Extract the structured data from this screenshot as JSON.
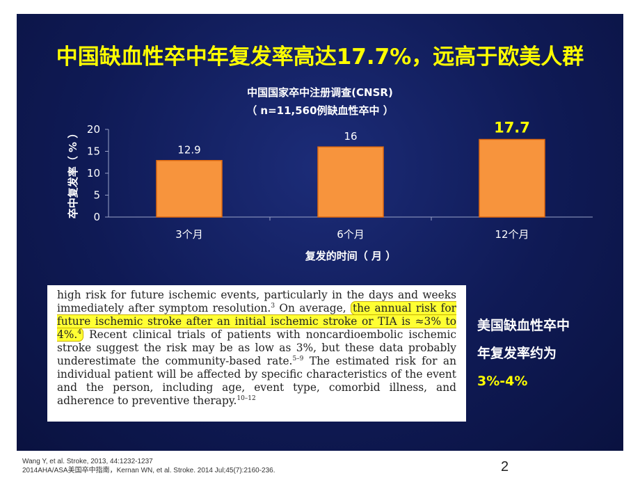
{
  "slide": {
    "headline": "中国缺血性卒中年复发率高达17.7%，远高于欧美人群",
    "page_number": "2"
  },
  "chart_data": {
    "type": "bar",
    "title": "中国国家卒中注册调查(CNSR)",
    "subtitle": "（ n=11,560例缺血性卒中 ）",
    "categories": [
      "3个月",
      "6个月",
      "12个月"
    ],
    "values": [
      12.9,
      16,
      17.7
    ],
    "value_labels": [
      "12.9",
      "16",
      "17.7"
    ],
    "highlight_index": 2,
    "xlabel": "复发的时间（ 月 ）",
    "ylabel": "卒中复发率（ % ）",
    "ylim": [
      0,
      20
    ],
    "yticks": [
      0,
      5,
      10,
      15,
      20
    ],
    "grid": false,
    "legend": "none",
    "colors": {
      "bar": "#f7943d",
      "bar_edge": "#e06a10",
      "label": "#ffffff",
      "highlight_label": "#ffff00",
      "axis": "#9aa3c8"
    }
  },
  "quote": {
    "pre": "high risk for future ischemic events, particularly in the days and weeks immediately after symptom resolution.",
    "ref1": "3",
    "mid": " On average, ",
    "highlight": "the annual risk for future ischemic stroke after an initial ischemic stroke or TIA is ≈3% to 4%.",
    "ref2": "4",
    "post1": " Recent clinical trials of patients with noncardioembolic ischemic stroke suggest the risk may be as low as 3%, but these data probably underestimate the community-based rate.",
    "ref3": "5–9",
    "post2": " The estimated risk for an individual patient will be affected by specific characteristics of the event and the person, including age, event type, comorbid illness, and adherence to preventive therapy.",
    "ref4": "10–12"
  },
  "us_note": {
    "line1": "美国缺血性卒中",
    "line2": "年复发率约为",
    "rate": "3%-4%"
  },
  "references": [
    "Wang Y,  et al. Stroke, 2013, 44:1232-1237",
    "2014AHA/ASA美国卒中指南，Kernan WN, et al. Stroke. 2014 Jul;45(7):2160-236."
  ]
}
